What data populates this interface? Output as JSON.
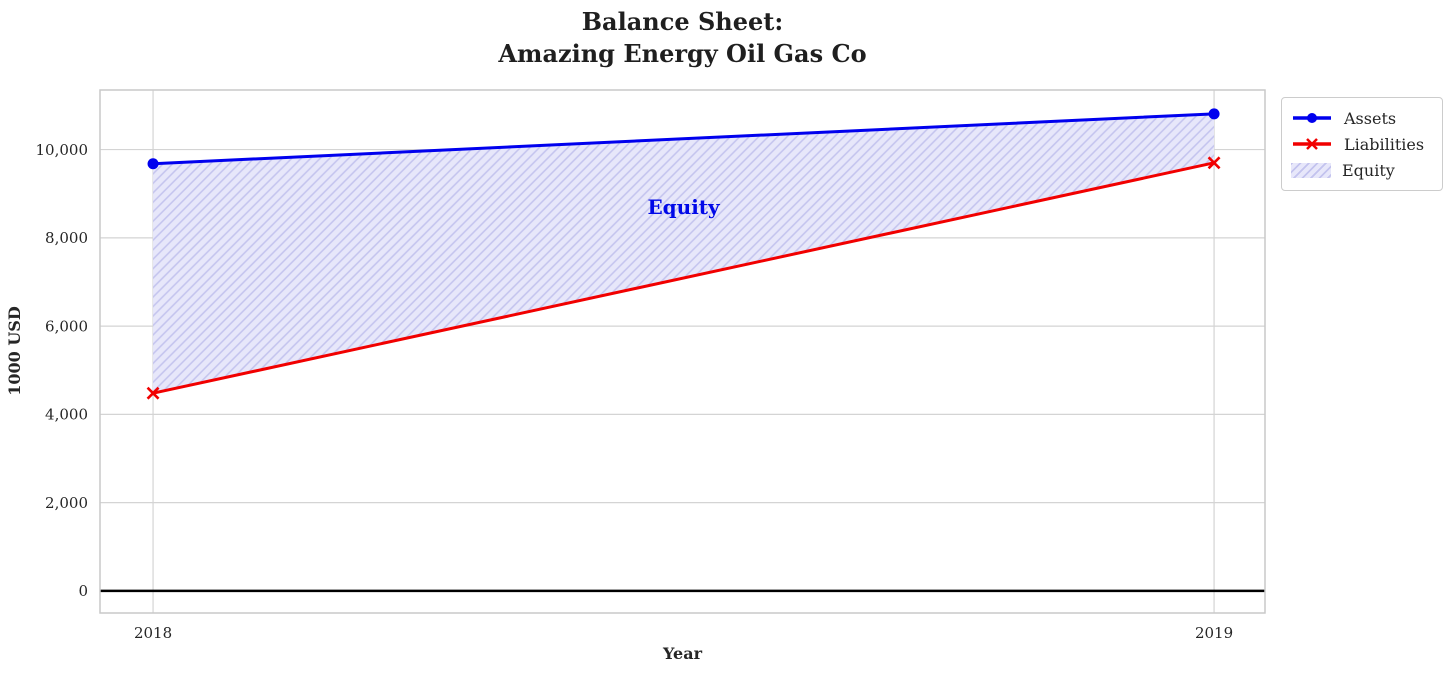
{
  "chart_data": {
    "type": "line",
    "title_lines": [
      "Balance Sheet:",
      "Amazing Energy Oil Gas Co"
    ],
    "xlabel": "Year",
    "ylabel": "1000 USD",
    "x": [
      2018,
      2019
    ],
    "series": [
      {
        "name": "Assets",
        "values": [
          9680,
          10810
        ],
        "color": "#0000ee",
        "marker": "circle",
        "linewidth": 3
      },
      {
        "name": "Liabilities",
        "values": [
          4480,
          9700
        ],
        "color": "#f10000",
        "marker": "x",
        "linewidth": 3
      }
    ],
    "area": {
      "name": "Equity",
      "between": [
        "Liabilities",
        "Assets"
      ],
      "values": [
        5200,
        1110
      ],
      "facecolor": "#e7e7fa",
      "hatchcolor": "#c3c3ee",
      "hatch": "///"
    },
    "annotation": {
      "text": "Equity",
      "x": 2018.5,
      "y": 8700,
      "color": "#0008e8"
    },
    "xlim": [
      2017.95,
      2019.048
    ],
    "ylim": [
      -500,
      11350
    ],
    "xticks": {
      "values": [
        2018,
        2019
      ],
      "labels": [
        "2018",
        "2019"
      ]
    },
    "yticks": {
      "values": [
        0,
        2000,
        4000,
        6000,
        8000,
        10000
      ],
      "labels": [
        "0",
        "2,000",
        "4,000",
        "6,000",
        "8,000",
        "10,000"
      ]
    },
    "zero_line_y": 0,
    "grid": true,
    "grid_color": "#d4d4d4",
    "spine_color": "#c9c9c9",
    "zero_line_color": "#000000",
    "legend_position": "outside upper right",
    "legend_entries": [
      "Assets",
      "Liabilities",
      "Equity"
    ]
  }
}
